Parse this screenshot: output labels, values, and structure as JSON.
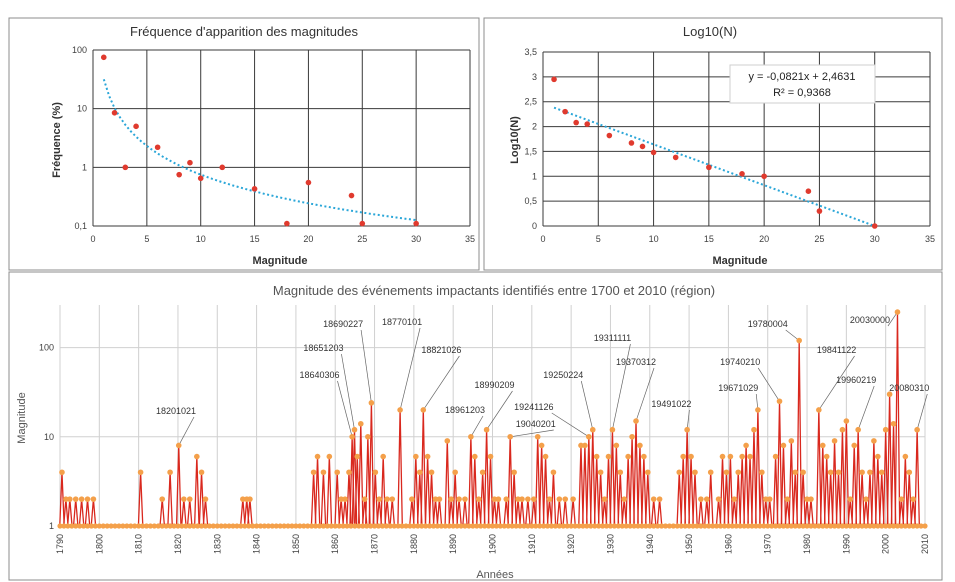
{
  "chart_data": [
    {
      "type": "scatter",
      "title": "Fréquence d'apparition des magnitudes",
      "xlabel": "Magnitude",
      "ylabel": "Fréquence (%)",
      "y_scale": "log",
      "xlim": [
        0,
        35
      ],
      "ylim": [
        0.1,
        100
      ],
      "grid": true,
      "x_ticks": [
        "0",
        "5",
        "10",
        "15",
        "20",
        "25",
        "30",
        "35"
      ],
      "y_ticks": [
        "0,1",
        "1",
        "10",
        "100"
      ],
      "points": [
        {
          "x": 1,
          "y": 75
        },
        {
          "x": 2,
          "y": 8.5
        },
        {
          "x": 3,
          "y": 1
        },
        {
          "x": 4,
          "y": 5
        },
        {
          "x": 6,
          "y": 2.2
        },
        {
          "x": 8,
          "y": 0.75
        },
        {
          "x": 9,
          "y": 1.2
        },
        {
          "x": 10,
          "y": 0.65
        },
        {
          "x": 12,
          "y": 1
        },
        {
          "x": 15,
          "y": 0.43
        },
        {
          "x": 18,
          "y": 0.11
        },
        {
          "x": 20,
          "y": 0.55
        },
        {
          "x": 24,
          "y": 0.33
        },
        {
          "x": 25,
          "y": 0.11
        },
        {
          "x": 30,
          "y": 0.11
        }
      ],
      "trendline": {
        "type": "power",
        "color": "#2aa6d8"
      }
    },
    {
      "type": "scatter",
      "title": "Log10(N)",
      "xlabel": "Magnitude",
      "ylabel": "Log10(N)",
      "xlim": [
        0,
        35
      ],
      "ylim": [
        0,
        3.5
      ],
      "grid": true,
      "x_ticks": [
        "0",
        "5",
        "10",
        "15",
        "20",
        "25",
        "30",
        "35"
      ],
      "y_ticks": [
        "0",
        "0,5",
        "1",
        "1,5",
        "2",
        "2,5",
        "3",
        "3,5"
      ],
      "points": [
        {
          "x": 1,
          "y": 2.95
        },
        {
          "x": 2,
          "y": 2.3
        },
        {
          "x": 3,
          "y": 2.08
        },
        {
          "x": 4,
          "y": 2.05
        },
        {
          "x": 6,
          "y": 1.82
        },
        {
          "x": 8,
          "y": 1.67
        },
        {
          "x": 9,
          "y": 1.6
        },
        {
          "x": 10,
          "y": 1.48
        },
        {
          "x": 12,
          "y": 1.38
        },
        {
          "x": 15,
          "y": 1.18
        },
        {
          "x": 18,
          "y": 1.05
        },
        {
          "x": 20,
          "y": 1
        },
        {
          "x": 24,
          "y": 0.7
        },
        {
          "x": 25,
          "y": 0.3
        },
        {
          "x": 30,
          "y": 0
        }
      ],
      "trendline": {
        "type": "linear",
        "slope": -0.0821,
        "intercept": 2.4631,
        "color": "#2aa6d8"
      },
      "equation_label": "y = -0,0821x + 2,4631",
      "r2_label": "R² = 0,9368"
    },
    {
      "type": "line",
      "title": "Magnitude des événements impactants identifiés entre 1700 et 2010 (région)",
      "xlabel": "Années",
      "ylabel": "Magnitude",
      "y_scale": "log",
      "xlim": [
        1790,
        2010
      ],
      "ylim": [
        1,
        300
      ],
      "grid": true,
      "x_ticks": [
        "1790",
        "1800",
        "1810",
        "1820",
        "1830",
        "1840",
        "1850",
        "1860",
        "1870",
        "1880",
        "1890",
        "1900",
        "1910",
        "1920",
        "1930",
        "1940",
        "1950",
        "1960",
        "1970",
        "1980",
        "1990",
        "2000",
        "2010"
      ],
      "y_ticks": [
        "1",
        "10",
        "100"
      ],
      "line_color": "#d9281e",
      "marker_color": "#f4a04a",
      "baseline": 1,
      "events": [
        [
          1790.5,
          4
        ],
        [
          1791.5,
          2
        ],
        [
          1792.5,
          2
        ],
        [
          1794,
          2
        ],
        [
          1795.5,
          2
        ],
        [
          1797,
          2
        ],
        [
          1798.5,
          2
        ],
        [
          1810.5,
          4
        ],
        [
          1816,
          2
        ],
        [
          1818,
          4
        ],
        [
          1820.2,
          8
        ],
        [
          1821.5,
          2
        ],
        [
          1823,
          2
        ],
        [
          1824.8,
          6
        ],
        [
          1826,
          4
        ],
        [
          1827,
          2
        ],
        [
          1836.5,
          2
        ],
        [
          1837.5,
          2
        ],
        [
          1838.3,
          2
        ],
        [
          1854.5,
          4
        ],
        [
          1855.5,
          6
        ],
        [
          1857,
          4
        ],
        [
          1858.5,
          6
        ],
        [
          1860.5,
          4
        ],
        [
          1861.5,
          2
        ],
        [
          1862.5,
          2
        ],
        [
          1863.5,
          4
        ],
        [
          1864.3,
          10
        ],
        [
          1864.9,
          12
        ],
        [
          1865.6,
          6
        ],
        [
          1866.5,
          14
        ],
        [
          1867.5,
          2
        ],
        [
          1868.3,
          10
        ],
        [
          1869.2,
          24
        ],
        [
          1870.2,
          4
        ],
        [
          1871.2,
          2
        ],
        [
          1872.2,
          6
        ],
        [
          1873.2,
          2
        ],
        [
          1874.5,
          2
        ],
        [
          1876.5,
          20
        ],
        [
          1879.5,
          2
        ],
        [
          1880.5,
          6
        ],
        [
          1881.5,
          4
        ],
        [
          1882.4,
          20
        ],
        [
          1883.5,
          6
        ],
        [
          1884.5,
          4
        ],
        [
          1885.5,
          2
        ],
        [
          1886.5,
          2
        ],
        [
          1888.5,
          9
        ],
        [
          1889.5,
          2
        ],
        [
          1890.5,
          4
        ],
        [
          1891.5,
          2
        ],
        [
          1893,
          2
        ],
        [
          1894.5,
          10
        ],
        [
          1895.5,
          6
        ],
        [
          1896.5,
          2
        ],
        [
          1897.5,
          4
        ],
        [
          1898.5,
          12
        ],
        [
          1899.5,
          6
        ],
        [
          1900.5,
          2
        ],
        [
          1901.5,
          2
        ],
        [
          1903.5,
          2
        ],
        [
          1904.5,
          10
        ],
        [
          1905.5,
          4
        ],
        [
          1906.5,
          2
        ],
        [
          1907.5,
          2
        ],
        [
          1909,
          2
        ],
        [
          1910.5,
          2
        ],
        [
          1911.5,
          10
        ],
        [
          1912.5,
          8
        ],
        [
          1913.5,
          6
        ],
        [
          1914.5,
          2
        ],
        [
          1915.5,
          4
        ],
        [
          1917,
          2
        ],
        [
          1918.5,
          2
        ],
        [
          1920.5,
          2
        ],
        [
          1922.5,
          8
        ],
        [
          1923.5,
          8
        ],
        [
          1924.5,
          10
        ],
        [
          1925.5,
          12
        ],
        [
          1926.5,
          6
        ],
        [
          1927.5,
          4
        ],
        [
          1928.5,
          2
        ],
        [
          1929.5,
          6
        ],
        [
          1930.5,
          12
        ],
        [
          1931.5,
          8
        ],
        [
          1932.5,
          4
        ],
        [
          1933.5,
          2
        ],
        [
          1934.5,
          6
        ],
        [
          1935.5,
          10
        ],
        [
          1936.5,
          15
        ],
        [
          1937.5,
          8
        ],
        [
          1938.5,
          6
        ],
        [
          1939.5,
          4
        ],
        [
          1941,
          2
        ],
        [
          1942.5,
          2
        ],
        [
          1947.5,
          4
        ],
        [
          1948.5,
          6
        ],
        [
          1949.5,
          12
        ],
        [
          1950.5,
          6
        ],
        [
          1951.5,
          4
        ],
        [
          1953,
          2
        ],
        [
          1954.5,
          2
        ],
        [
          1955.5,
          4
        ],
        [
          1957.5,
          2
        ],
        [
          1958.5,
          6
        ],
        [
          1959.5,
          4
        ],
        [
          1960.5,
          6
        ],
        [
          1961.5,
          2
        ],
        [
          1962.5,
          4
        ],
        [
          1963.5,
          6
        ],
        [
          1964.5,
          8
        ],
        [
          1965.5,
          6
        ],
        [
          1966.5,
          12
        ],
        [
          1967.5,
          20
        ],
        [
          1968.5,
          4
        ],
        [
          1969.5,
          2
        ],
        [
          1970.5,
          2
        ],
        [
          1972,
          6
        ],
        [
          1973,
          25
        ],
        [
          1974,
          8
        ],
        [
          1975,
          2
        ],
        [
          1976,
          9
        ],
        [
          1977,
          4
        ],
        [
          1978,
          120
        ],
        [
          1979,
          4
        ],
        [
          1980,
          2
        ],
        [
          1981,
          2
        ],
        [
          1983,
          20
        ],
        [
          1984,
          8
        ],
        [
          1985,
          6
        ],
        [
          1986,
          4
        ],
        [
          1987,
          9
        ],
        [
          1988,
          4
        ],
        [
          1989,
          12
        ],
        [
          1990,
          15
        ],
        [
          1991,
          2
        ],
        [
          1992,
          8
        ],
        [
          1993,
          12
        ],
        [
          1994,
          4
        ],
        [
          1995,
          2
        ],
        [
          1996,
          4
        ],
        [
          1997,
          9
        ],
        [
          1998,
          6
        ],
        [
          1999,
          4
        ],
        [
          2000,
          12
        ],
        [
          2001,
          30
        ],
        [
          2002,
          14
        ],
        [
          2003,
          250
        ],
        [
          2004,
          2
        ],
        [
          2005,
          6
        ],
        [
          2006,
          4
        ],
        [
          2007,
          2
        ],
        [
          2008,
          12
        ]
      ],
      "annotations": [
        {
          "label": "18201021",
          "x": 1820.2,
          "y": 8
        },
        {
          "label": "18640306",
          "x": 1864.3,
          "y": 10
        },
        {
          "label": "18651203",
          "x": 1864.9,
          "y": 12
        },
        {
          "label": "18690227",
          "x": 1869.2,
          "y": 24
        },
        {
          "label": "18770101",
          "x": 1876.5,
          "y": 20
        },
        {
          "label": "18821026",
          "x": 1882.4,
          "y": 20
        },
        {
          "label": "18961203",
          "x": 1894.5,
          "y": 10
        },
        {
          "label": "18990209",
          "x": 1898.5,
          "y": 12
        },
        {
          "label": "19040201",
          "x": 1904.5,
          "y": 10
        },
        {
          "label": "19241126",
          "x": 1924.5,
          "y": 10
        },
        {
          "label": "19250224",
          "x": 1925.5,
          "y": 12
        },
        {
          "label": "19311111",
          "x": 1930.5,
          "y": 12
        },
        {
          "label": "19370312",
          "x": 1936.5,
          "y": 15
        },
        {
          "label": "19491022",
          "x": 1949.5,
          "y": 12
        },
        {
          "label": "19671029",
          "x": 1967.5,
          "y": 20
        },
        {
          "label": "19740210",
          "x": 1973,
          "y": 25
        },
        {
          "label": "19780004",
          "x": 1978,
          "y": 120
        },
        {
          "label": "19841122",
          "x": 1983,
          "y": 20
        },
        {
          "label": "19960219",
          "x": 1993,
          "y": 12
        },
        {
          "label": "20030000",
          "x": 2003,
          "y": 250
        },
        {
          "label": "20080310",
          "x": 2008,
          "y": 12
        }
      ]
    }
  ]
}
